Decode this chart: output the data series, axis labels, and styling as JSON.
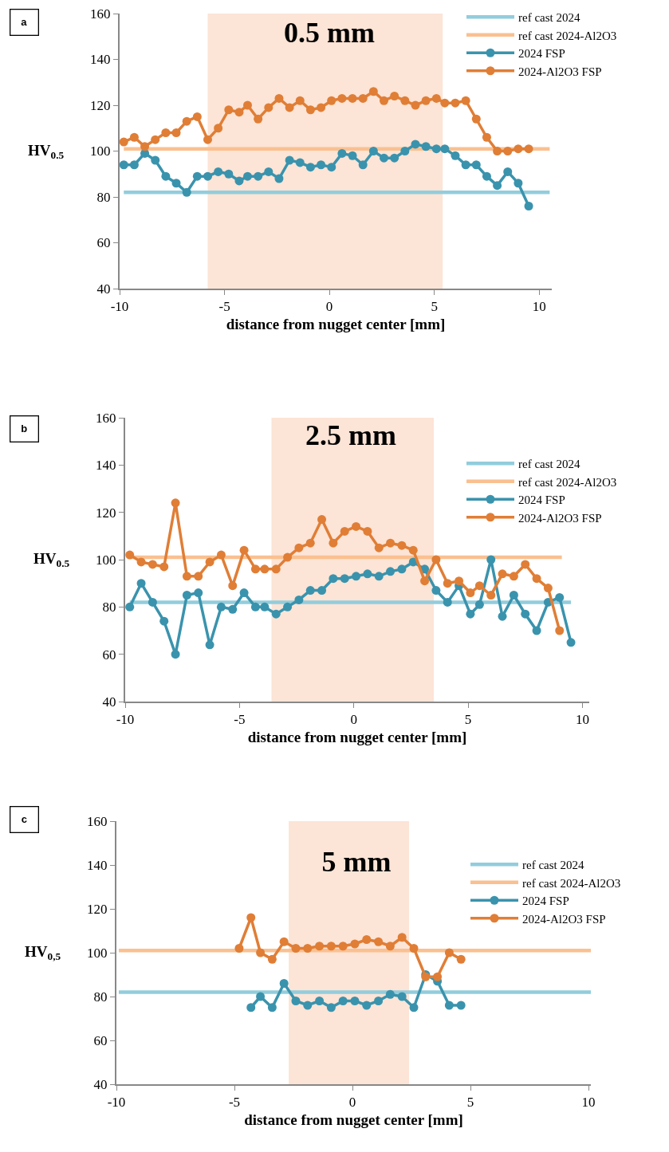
{
  "chart_data": [
    {
      "type": "line",
      "title": "0.5 mm",
      "xlabel": "distance from nugget center [mm]",
      "ylabel": "HV$_{0.5}$",
      "annotations": [
        "a"
      ],
      "xlim": [
        -10,
        10.6
      ],
      "xticks": [
        -10,
        -5,
        0,
        5,
        10
      ],
      "ylim": [
        40,
        160
      ],
      "yticks": [
        40,
        60,
        80,
        100,
        120,
        140,
        160
      ],
      "grid": false,
      "legend": "top right",
      "bands": [
        {
          "axis": "x",
          "from": -5.8,
          "to": 5.4,
          "color": "#fce4d6"
        }
      ],
      "series": [
        {
          "name": "ref cast 2024",
          "color": "#92cddc",
          "marker": "none",
          "x": [
            -9.8,
            10.5
          ],
          "values": [
            82,
            82
          ]
        },
        {
          "name": "ref cast 2024-Al2O3",
          "color": "#fac090",
          "marker": "none",
          "x": [
            -9.8,
            10.5
          ],
          "values": [
            101,
            101
          ]
        },
        {
          "name": "2024 FSP",
          "color": "#3a93ad",
          "marker": "circle",
          "x": [
            -9.8,
            -9.3,
            -8.8,
            -8.3,
            -7.8,
            -7.3,
            -6.8,
            -6.3,
            -5.8,
            -5.3,
            -4.8,
            -4.3,
            -3.9,
            -3.4,
            -2.9,
            -2.4,
            -1.9,
            -1.4,
            -0.9,
            -0.4,
            0.1,
            0.6,
            1.1,
            1.6,
            2.1,
            2.6,
            3.1,
            3.6,
            4.1,
            4.6,
            5.1,
            5.5,
            6.0,
            6.5,
            7.0,
            7.5,
            8.0,
            8.5,
            9.0,
            9.5
          ],
          "values": [
            94,
            94,
            99,
            96,
            89,
            86,
            82,
            89,
            89,
            91,
            90,
            87,
            89,
            89,
            91,
            88,
            96,
            95,
            93,
            94,
            93,
            99,
            98,
            94,
            100,
            97,
            97,
            100,
            103,
            102,
            101,
            101,
            98,
            94,
            94,
            89,
            85,
            91,
            86,
            76
          ]
        },
        {
          "name": "2024-Al2O3 FSP",
          "color": "#e07e36",
          "marker": "circle",
          "x": [
            -9.8,
            -9.3,
            -8.8,
            -8.3,
            -7.8,
            -7.3,
            -6.8,
            -6.3,
            -5.8,
            -5.3,
            -4.8,
            -4.3,
            -3.9,
            -3.4,
            -2.9,
            -2.4,
            -1.9,
            -1.4,
            -0.9,
            -0.4,
            0.1,
            0.6,
            1.1,
            1.6,
            2.1,
            2.6,
            3.1,
            3.6,
            4.1,
            4.6,
            5.1,
            5.5,
            6.0,
            6.5,
            7.0,
            7.5,
            8.0,
            8.5,
            9.0,
            9.5
          ],
          "values": [
            104,
            106,
            102,
            105,
            108,
            108,
            113,
            115,
            105,
            110,
            118,
            117,
            120,
            114,
            119,
            123,
            119,
            122,
            118,
            119,
            122,
            123,
            123,
            123,
            126,
            122,
            124,
            122,
            120,
            122,
            123,
            121,
            121,
            122,
            114,
            106,
            100,
            100,
            101,
            101
          ]
        }
      ]
    },
    {
      "type": "line",
      "title": "2.5 mm",
      "xlabel": "distance from nugget center [mm]",
      "ylabel": "HV$_{0.5}$",
      "annotations": [
        "b"
      ],
      "xlim": [
        -10,
        10.3
      ],
      "xticks": [
        -10,
        -5,
        0,
        5,
        10
      ],
      "ylim": [
        40,
        160
      ],
      "yticks": [
        40,
        60,
        80,
        100,
        120,
        140,
        160
      ],
      "grid": false,
      "legend": "top right",
      "bands": [
        {
          "axis": "x",
          "from": -3.6,
          "to": 3.5,
          "color": "#fce4d6"
        }
      ],
      "series": [
        {
          "name": "ref cast 2024",
          "color": "#92cddc",
          "marker": "none",
          "x": [
            -9.8,
            9.5
          ],
          "values": [
            82,
            82
          ]
        },
        {
          "name": "ref cast 2024-Al2O3",
          "color": "#fac090",
          "marker": "none",
          "x": [
            -9.8,
            9.1
          ],
          "values": [
            101,
            101
          ]
        },
        {
          "name": "2024 FSP",
          "color": "#3a93ad",
          "marker": "circle",
          "x": [
            -9.8,
            -9.3,
            -8.8,
            -8.3,
            -7.8,
            -7.3,
            -6.8,
            -6.3,
            -5.8,
            -5.3,
            -4.8,
            -4.3,
            -3.9,
            -3.4,
            -2.9,
            -2.4,
            -1.9,
            -1.4,
            -0.9,
            -0.4,
            0.1,
            0.6,
            1.1,
            1.6,
            2.1,
            2.6,
            3.1,
            3.6,
            4.1,
            4.6,
            5.1,
            5.5,
            6.0,
            6.5,
            7.0,
            7.5,
            8.0,
            8.5,
            9.0,
            9.5
          ],
          "values": [
            80,
            90,
            82,
            74,
            60,
            85,
            86,
            64,
            80,
            79,
            86,
            80,
            80,
            77,
            80,
            83,
            87,
            87,
            92,
            92,
            93,
            94,
            93,
            95,
            96,
            99,
            96,
            87,
            82,
            89,
            77,
            81,
            100,
            76,
            85,
            77,
            70,
            82,
            84,
            65
          ]
        },
        {
          "name": "2024-Al2O3 FSP",
          "color": "#e07e36",
          "marker": "circle",
          "x": [
            -9.8,
            -9.3,
            -8.8,
            -8.3,
            -7.8,
            -7.3,
            -6.8,
            -6.3,
            -5.8,
            -5.3,
            -4.8,
            -4.3,
            -3.9,
            -3.4,
            -2.9,
            -2.4,
            -1.9,
            -1.4,
            -0.9,
            -0.4,
            0.1,
            0.6,
            1.1,
            1.6,
            2.1,
            2.6,
            3.1,
            3.6,
            4.1,
            4.6,
            5.1,
            5.5,
            6.0,
            6.5,
            7.0,
            7.5,
            8.0,
            8.5,
            9.0
          ],
          "values": [
            102,
            99,
            98,
            97,
            124,
            93,
            93,
            99,
            102,
            89,
            104,
            96,
            96,
            96,
            101,
            105,
            107,
            117,
            107,
            112,
            114,
            112,
            105,
            107,
            106,
            104,
            91,
            100,
            90,
            91,
            86,
            89,
            85,
            94,
            93,
            98,
            92,
            88,
            70
          ]
        }
      ]
    },
    {
      "type": "line",
      "title": "5 mm",
      "xlabel": "distance from nugget center [mm]",
      "ylabel": "HV$_{0,5}$",
      "annotations": [
        "c"
      ],
      "xlim": [
        -10,
        10.1
      ],
      "xticks": [
        -10,
        -5,
        0,
        5,
        10
      ],
      "ylim": [
        40,
        160
      ],
      "yticks": [
        40,
        60,
        80,
        100,
        120,
        140,
        160
      ],
      "grid": false,
      "legend": "top right",
      "bands": [
        {
          "axis": "x",
          "from": -2.7,
          "to": 2.4,
          "color": "#fce4d6"
        }
      ],
      "series": [
        {
          "name": "ref cast 2024",
          "color": "#92cddc",
          "marker": "none",
          "x": [
            -9.9,
            10.1
          ],
          "values": [
            82,
            82
          ]
        },
        {
          "name": "ref cast 2024-Al2O3",
          "color": "#fac090",
          "marker": "none",
          "x": [
            -9.9,
            10.1
          ],
          "values": [
            101,
            101
          ]
        },
        {
          "name": "2024 FSP",
          "color": "#3a93ad",
          "marker": "circle",
          "x": [
            -4.3,
            -3.9,
            -3.4,
            -2.9,
            -2.4,
            -1.9,
            -1.4,
            -0.9,
            -0.4,
            0.1,
            0.6,
            1.1,
            1.6,
            2.1,
            2.6,
            3.1,
            3.6,
            4.1,
            4.6
          ],
          "values": [
            75,
            80,
            75,
            86,
            78,
            76,
            78,
            75,
            78,
            78,
            76,
            78,
            81,
            80,
            75,
            90,
            87,
            76,
            76
          ]
        },
        {
          "name": "2024-Al2O3 FSP",
          "color": "#e07e36",
          "marker": "circle",
          "x": [
            -4.8,
            -4.3,
            -3.9,
            -3.4,
            -2.9,
            -2.4,
            -1.9,
            -1.4,
            -0.9,
            -0.4,
            0.1,
            0.6,
            1.1,
            1.6,
            2.1,
            2.6,
            3.1,
            3.6,
            4.1,
            4.6
          ],
          "values": [
            102,
            116,
            100,
            97,
            105,
            102,
            102,
            103,
            103,
            103,
            104,
            106,
            105,
            103,
            107,
            102,
            89,
            89,
            100,
            97
          ]
        }
      ]
    }
  ]
}
